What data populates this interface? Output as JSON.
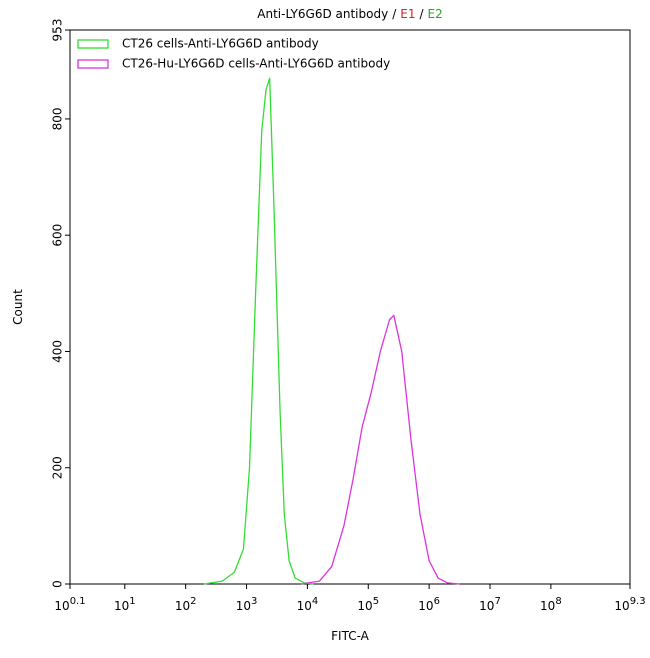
{
  "chart_data": {
    "type": "line",
    "title_parts": [
      {
        "text": "Anti-LY6G6D antibody",
        "color": "#000000"
      },
      {
        "text": "/",
        "color": "#000000"
      },
      {
        "text": "E1",
        "color": "#dd2222"
      },
      {
        "text": "/",
        "color": "#000000"
      },
      {
        "text": "E2",
        "color": "#22aa22"
      }
    ],
    "x_label": "FITC-A",
    "y_label": "Count",
    "x_scale": "log",
    "xlim": [
      1.2589254117941673,
      1995262314.968879
    ],
    "xticks": [
      {
        "value": 1.2589254117941673,
        "label": "10",
        "sup": "0.1"
      },
      {
        "value": 10,
        "label": "10",
        "sup": "1"
      },
      {
        "value": 100,
        "label": "10",
        "sup": "2"
      },
      {
        "value": 1000,
        "label": "10",
        "sup": "3"
      },
      {
        "value": 10000,
        "label": "10",
        "sup": "4"
      },
      {
        "value": 100000,
        "label": "10",
        "sup": "5"
      },
      {
        "value": 1000000,
        "label": "10",
        "sup": "6"
      },
      {
        "value": 10000000,
        "label": "10",
        "sup": "7"
      },
      {
        "value": 100000000,
        "label": "10",
        "sup": "8"
      },
      {
        "value": 1995262314.968879,
        "label": "10",
        "sup": "9.3"
      }
    ],
    "ylim": [
      0,
      953
    ],
    "yticks": [
      0,
      200,
      400,
      600,
      800,
      953
    ],
    "legend": "upper left",
    "series": [
      {
        "name": "CT26 cells-Anti-LY6G6D antibody",
        "color": "#33dd33",
        "x": [
          200,
          400,
          630,
          890,
          1120,
          1410,
          1780,
          2090,
          2400,
          2820,
          3550,
          4170,
          5010,
          6310,
          8910,
          12600
        ],
        "values": [
          0,
          5,
          20,
          60,
          200,
          500,
          780,
          850,
          870,
          650,
          300,
          120,
          40,
          10,
          2,
          0
        ]
      },
      {
        "name": "CT26-Hu-LY6G6D cells-Anti-LY6G6D antibody",
        "color": "#dd33dd",
        "x": [
          7940,
          15800,
          25100,
          39800,
          56200,
          79400,
          112000,
          158000,
          224000,
          263000,
          355000,
          501000,
          708000,
          1000000,
          1410000,
          2000000,
          3160000
        ],
        "values": [
          0,
          5,
          30,
          100,
          180,
          270,
          330,
          400,
          455,
          462,
          400,
          250,
          120,
          40,
          10,
          2,
          0
        ]
      }
    ]
  }
}
